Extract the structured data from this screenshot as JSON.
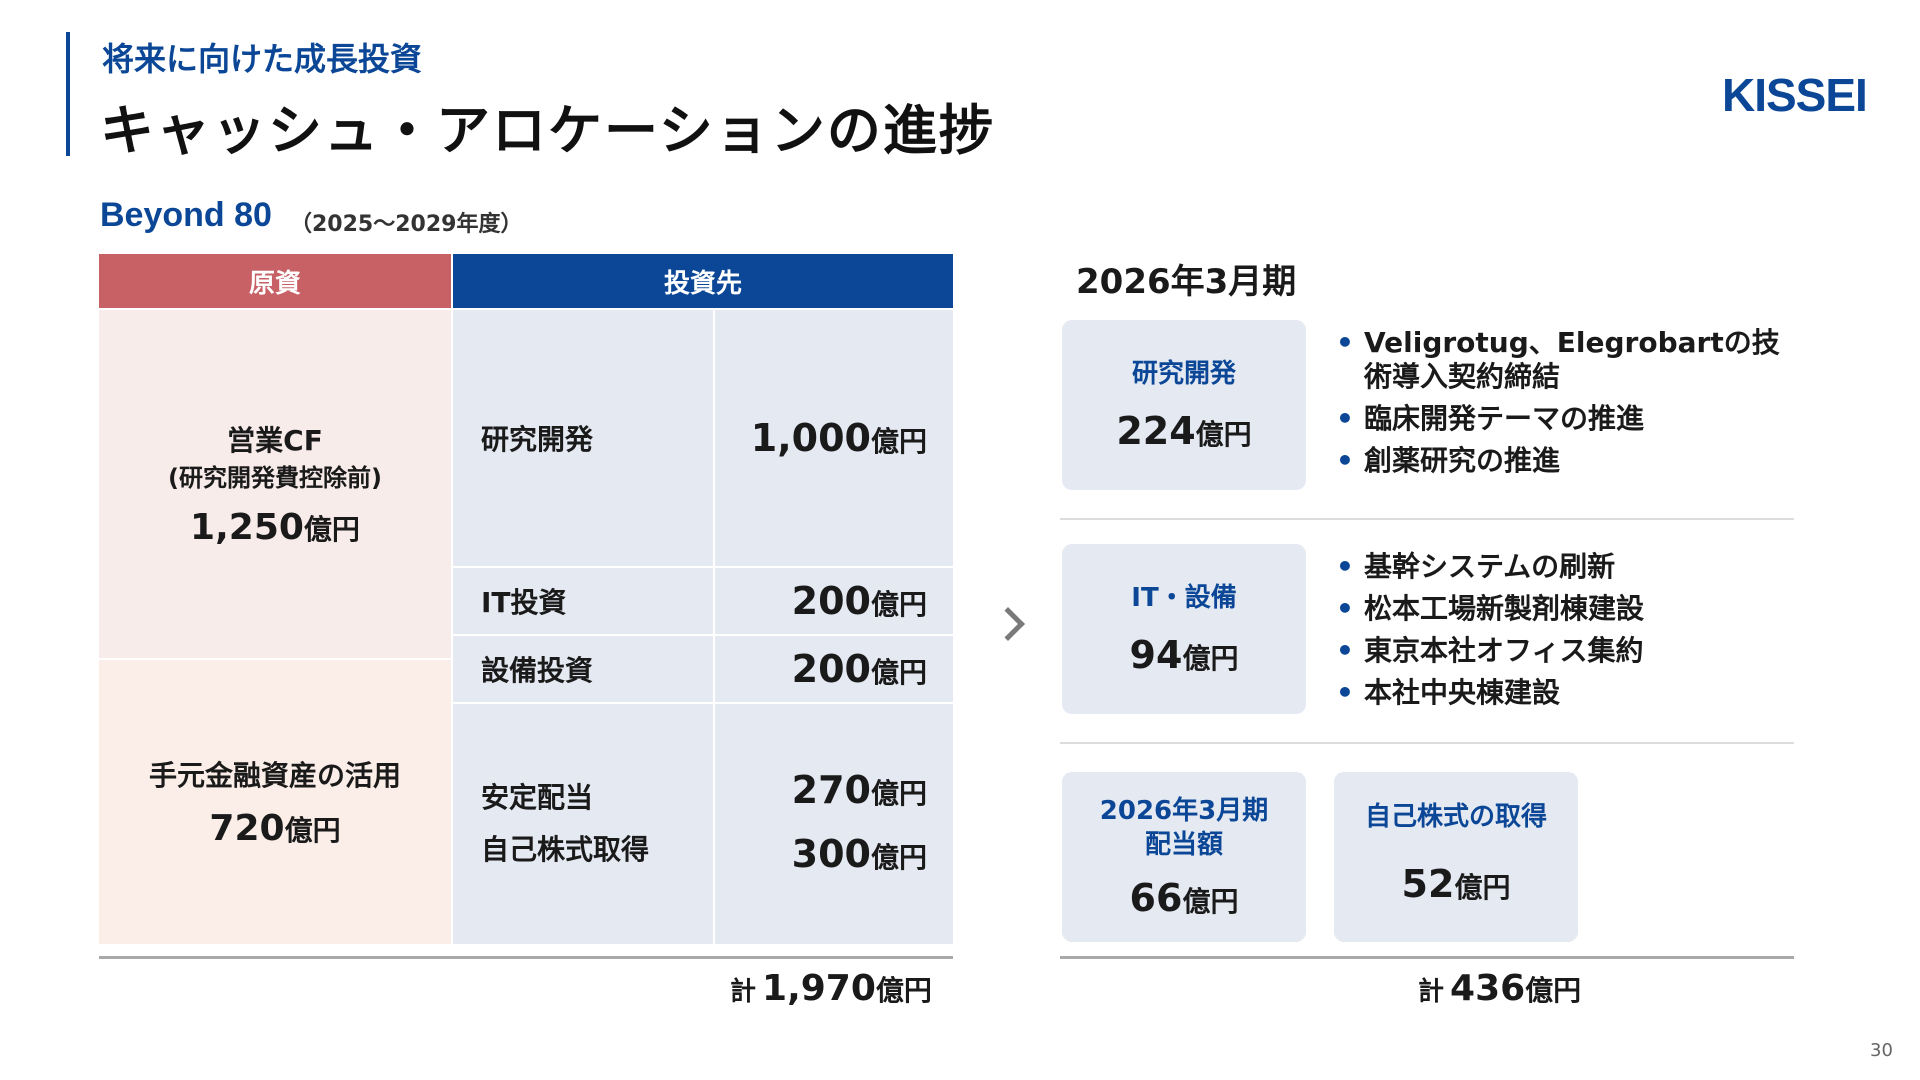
{
  "header": {
    "subtitle": "将来に向けた成長投資",
    "title": "キャッシュ・アロケーションの進捗",
    "logo": "KISSEI"
  },
  "section": {
    "label": "Beyond 80",
    "period": "（2025～2029年度）"
  },
  "table": {
    "source_header": "原資",
    "dest_header": "投資先",
    "sources": [
      {
        "title": "営業CF",
        "sub": "(研究開発費控除前)",
        "value": "1,250",
        "unit": "億円"
      },
      {
        "title": "手元金融資産の活用",
        "value": "720",
        "unit": "億円"
      }
    ],
    "dests": [
      {
        "label": "研究開発",
        "value": "1,000",
        "unit": "億円"
      },
      {
        "label": "IT投資",
        "value": "200",
        "unit": "億円"
      },
      {
        "label": "設備投資",
        "value": "200",
        "unit": "億円"
      },
      {
        "label": "安定配当",
        "value": "270",
        "unit": "億円"
      },
      {
        "label": "自己株式取得",
        "value": "300",
        "unit": "億円"
      }
    ],
    "total_prefix": "計",
    "total_value": "1,970",
    "total_unit": "億円"
  },
  "fy": {
    "title": "2026年3月期",
    "boxes": [
      {
        "title": "研究開発",
        "value": "224",
        "unit": "億円"
      },
      {
        "title": "IT・設備",
        "value": "94",
        "unit": "億円"
      },
      {
        "title1": "2026年3月期",
        "title2": "配当額",
        "value": "66",
        "unit": "億円"
      },
      {
        "title": "自己株式の取得",
        "value": "52",
        "unit": "億円"
      }
    ],
    "bullets_rd": [
      "Veligrotug、Elegrobartの技術導入契約締結",
      "臨床開発テーマの推進",
      "創薬研究の推進"
    ],
    "bullets_it": [
      "基幹システムの刷新",
      "松本工場新製剤棟建設",
      "東京本社オフィス集約",
      "本社中央棟建設"
    ],
    "total_prefix": "計",
    "total_value": "436",
    "total_unit": "億円"
  },
  "page_number": "30"
}
